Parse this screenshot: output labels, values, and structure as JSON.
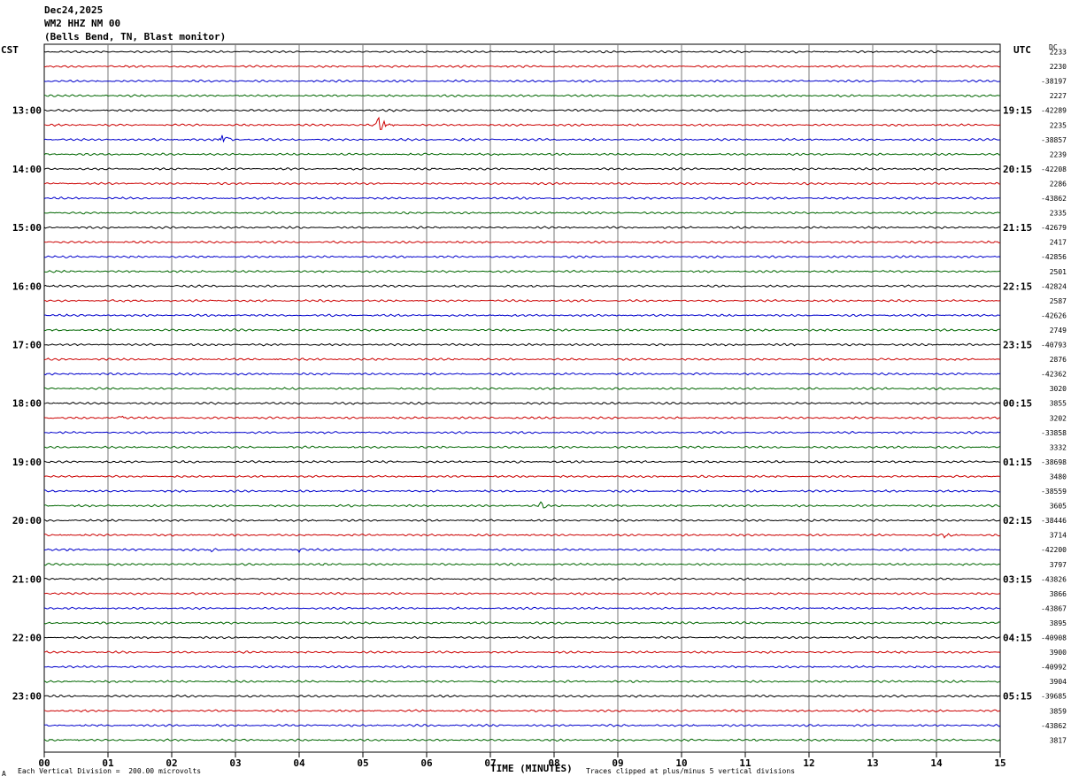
{
  "header": {
    "date": "Dec24,2025",
    "station": "WM2 HHZ NM 00",
    "location": "(Bells Bend, TN, Blast monitor)"
  },
  "left_axis_label": "CST",
  "right_axis_label": "UTC",
  "dc_header": "DC",
  "footer": {
    "scale_note": "Each Vertical Division =  200.00 microvolts",
    "clip_note": "Traces clipped at plus/minus 5 vertical divisions",
    "corner_mark": "A"
  },
  "colors": {
    "cycle": [
      "#000000",
      "#cc0000",
      "#0000cc",
      "#006600"
    ],
    "grid": "#777777"
  },
  "chart_data": {
    "type": "line",
    "xlabel": "TIME (MINUTES)",
    "xlim": [
      0,
      15
    ],
    "x_ticks": [
      "00",
      "01",
      "02",
      "03",
      "04",
      "05",
      "06",
      "07",
      "08",
      "09",
      "10",
      "11",
      "12",
      "13",
      "14",
      "15"
    ],
    "hour_labels_cst": [
      "13:00",
      "14:00",
      "15:00",
      "16:00",
      "17:00",
      "18:00",
      "19:00",
      "20:00",
      "21:00",
      "22:00",
      "23:00"
    ],
    "hour_labels_utc": [
      "19:15",
      "20:15",
      "21:15",
      "22:15",
      "23:15",
      "00:15",
      "01:15",
      "02:15",
      "03:15",
      "04:15",
      "05:15"
    ],
    "first_hour_row": 4,
    "row_count": 48,
    "dc_offsets": [
      "2233",
      "2230",
      "-38197",
      "2227",
      "-42289",
      "2235",
      "-38857",
      "2239",
      "-42208",
      "2286",
      "-43862",
      "2335",
      "-42679",
      "2417",
      "-42856",
      "2501",
      "-42824",
      "2587",
      "-42626",
      "2749",
      "-40793",
      "2876",
      "-42362",
      "3020",
      "3855",
      "3202",
      "-33858",
      "3332",
      "-38698",
      "3480",
      "-38559",
      "3605",
      "-38446",
      "3714",
      "-42200",
      "3797",
      "-43826",
      "3866",
      "-43867",
      "3895",
      "-40908",
      "3900",
      "-40992",
      "3904",
      "-39685",
      "3859",
      "-43862",
      "3817"
    ],
    "events": [
      {
        "row": 5,
        "minute": 5.25,
        "amplitude": 1.6
      },
      {
        "row": 6,
        "minute": 2.78,
        "amplitude": 1.3
      },
      {
        "row": 31,
        "minute": 7.8,
        "amplitude": 0.4
      },
      {
        "row": 33,
        "minute": 14.12,
        "amplitude": 0.5
      },
      {
        "row": 34,
        "minute": 2.6,
        "amplitude": 0.35
      },
      {
        "row": 34,
        "minute": 4.0,
        "amplitude": 0.3
      },
      {
        "row": 25,
        "minute": 1.2,
        "amplitude": 0.35
      }
    ]
  }
}
